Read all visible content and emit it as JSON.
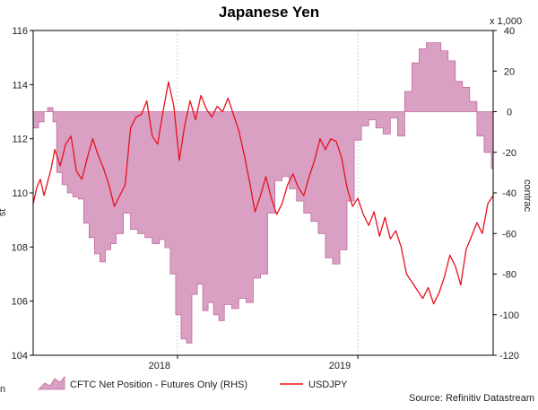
{
  "chart_data": {
    "type": "area+line",
    "title": "Japanese Yen",
    "source": "Source: Refinitiv Datastream",
    "left_axis": {
      "label": "st",
      "ylim": [
        104,
        116
      ],
      "ticks": [
        104,
        106,
        108,
        110,
        112,
        114,
        116
      ]
    },
    "right_axis": {
      "label": "contrac",
      "multiplier": "x 1,000",
      "ylim": [
        -120,
        40
      ],
      "ticks": [
        -120,
        -100,
        -80,
        -60,
        -40,
        -20,
        0,
        20,
        40
      ]
    },
    "x_axis": {
      "range": [
        2017.3,
        2019.85
      ],
      "tick_labels": [
        {
          "label": "2018",
          "x": 2018.0
        },
        {
          "label": "2019",
          "x": 2019.0
        }
      ],
      "gridlines": [
        2018.1,
        2019.1
      ],
      "bottom_left_label": "n"
    },
    "series": [
      {
        "name": "CFTC Net Position - Futures Only (RHS)",
        "type": "area",
        "axis": "right",
        "color": "#d9a0c3",
        "edge_color": "#c06a9f",
        "x": [
          2017.3,
          2017.33,
          2017.36,
          2017.38,
          2017.41,
          2017.43,
          2017.46,
          2017.49,
          2017.52,
          2017.55,
          2017.58,
          2017.61,
          2017.64,
          2017.67,
          2017.7,
          2017.73,
          2017.76,
          2017.8,
          2017.84,
          2017.88,
          2017.92,
          2017.96,
          2018.0,
          2018.03,
          2018.06,
          2018.09,
          2018.12,
          2018.15,
          2018.18,
          2018.21,
          2018.24,
          2018.27,
          2018.3,
          2018.33,
          2018.36,
          2018.4,
          2018.44,
          2018.48,
          2018.52,
          2018.56,
          2018.6,
          2018.64,
          2018.68,
          2018.72,
          2018.76,
          2018.8,
          2018.84,
          2018.88,
          2018.92,
          2018.96,
          2019.0,
          2019.04,
          2019.08,
          2019.12,
          2019.16,
          2019.2,
          2019.24,
          2019.28,
          2019.32,
          2019.36,
          2019.4,
          2019.44,
          2019.48,
          2019.52,
          2019.56,
          2019.6,
          2019.64,
          2019.68,
          2019.72,
          2019.76,
          2019.8,
          2019.84
        ],
        "values": [
          -8,
          -5,
          0,
          2,
          -5,
          -30,
          -36,
          -40,
          -42,
          -43,
          -55,
          -62,
          -70,
          -74,
          -68,
          -65,
          -60,
          -50,
          -58,
          -60,
          -62,
          -65,
          -63,
          -67,
          -80,
          -100,
          -112,
          -114,
          -90,
          -85,
          -98,
          -94,
          -100,
          -103,
          -95,
          -97,
          -92,
          -94,
          -82,
          -80,
          -50,
          -34,
          -32,
          -38,
          -44,
          -50,
          -54,
          -60,
          -72,
          -75,
          -68,
          -44,
          -14,
          -7,
          -4,
          -8,
          -11,
          -3,
          -12,
          10,
          24,
          31,
          34,
          34,
          30,
          25,
          15,
          12,
          5,
          -12,
          -20,
          -28
        ]
      },
      {
        "name": "USDJPY",
        "type": "line",
        "axis": "left",
        "color": "#e8101c",
        "x": [
          2017.3,
          2017.32,
          2017.34,
          2017.36,
          2017.38,
          2017.4,
          2017.42,
          2017.45,
          2017.48,
          2017.51,
          2017.54,
          2017.57,
          2017.6,
          2017.63,
          2017.66,
          2017.69,
          2017.72,
          2017.75,
          2017.78,
          2017.81,
          2017.84,
          2017.87,
          2017.9,
          2017.93,
          2017.96,
          2017.99,
          2018.02,
          2018.05,
          2018.08,
          2018.11,
          2018.14,
          2018.17,
          2018.2,
          2018.23,
          2018.26,
          2018.29,
          2018.32,
          2018.35,
          2018.38,
          2018.41,
          2018.44,
          2018.47,
          2018.5,
          2018.53,
          2018.56,
          2018.59,
          2018.62,
          2018.65,
          2018.68,
          2018.71,
          2018.74,
          2018.77,
          2018.8,
          2018.83,
          2018.86,
          2018.89,
          2018.92,
          2018.95,
          2018.98,
          2019.01,
          2019.04,
          2019.07,
          2019.1,
          2019.13,
          2019.16,
          2019.19,
          2019.22,
          2019.25,
          2019.28,
          2019.31,
          2019.34,
          2019.37,
          2019.4,
          2019.43,
          2019.46,
          2019.49,
          2019.52,
          2019.55,
          2019.58,
          2019.61,
          2019.64,
          2019.67,
          2019.7,
          2019.73,
          2019.76,
          2019.79,
          2019.82,
          2019.85
        ],
        "values": [
          109.6,
          110.2,
          110.5,
          109.9,
          110.4,
          110.9,
          111.6,
          111.0,
          111.8,
          112.1,
          110.8,
          110.5,
          111.3,
          112.0,
          111.4,
          110.9,
          110.3,
          109.5,
          109.9,
          110.3,
          112.4,
          112.8,
          112.9,
          113.4,
          112.1,
          111.8,
          113.0,
          114.1,
          113.2,
          111.2,
          112.5,
          113.4,
          112.7,
          113.6,
          113.1,
          112.8,
          113.2,
          113.0,
          113.5,
          112.9,
          112.3,
          111.4,
          110.4,
          109.3,
          109.9,
          110.6,
          109.8,
          109.2,
          109.6,
          110.3,
          110.7,
          110.2,
          109.9,
          110.6,
          111.2,
          112.0,
          111.6,
          112.0,
          111.9,
          111.3,
          110.2,
          109.5,
          109.8,
          109.2,
          108.8,
          109.3,
          108.4,
          109.1,
          108.3,
          108.6,
          108.0,
          107.0,
          106.7,
          106.4,
          106.1,
          106.5,
          105.9,
          106.3,
          106.9,
          107.7,
          107.3,
          106.6,
          107.9,
          108.4,
          108.9,
          108.5,
          109.6,
          109.9
        ]
      }
    ],
    "legend": {
      "placement": "bottom",
      "entries": [
        {
          "label": "CFTC Net Position - Futures Only (RHS)",
          "kind": "area"
        },
        {
          "label": "USDJPY",
          "kind": "line"
        }
      ]
    }
  }
}
